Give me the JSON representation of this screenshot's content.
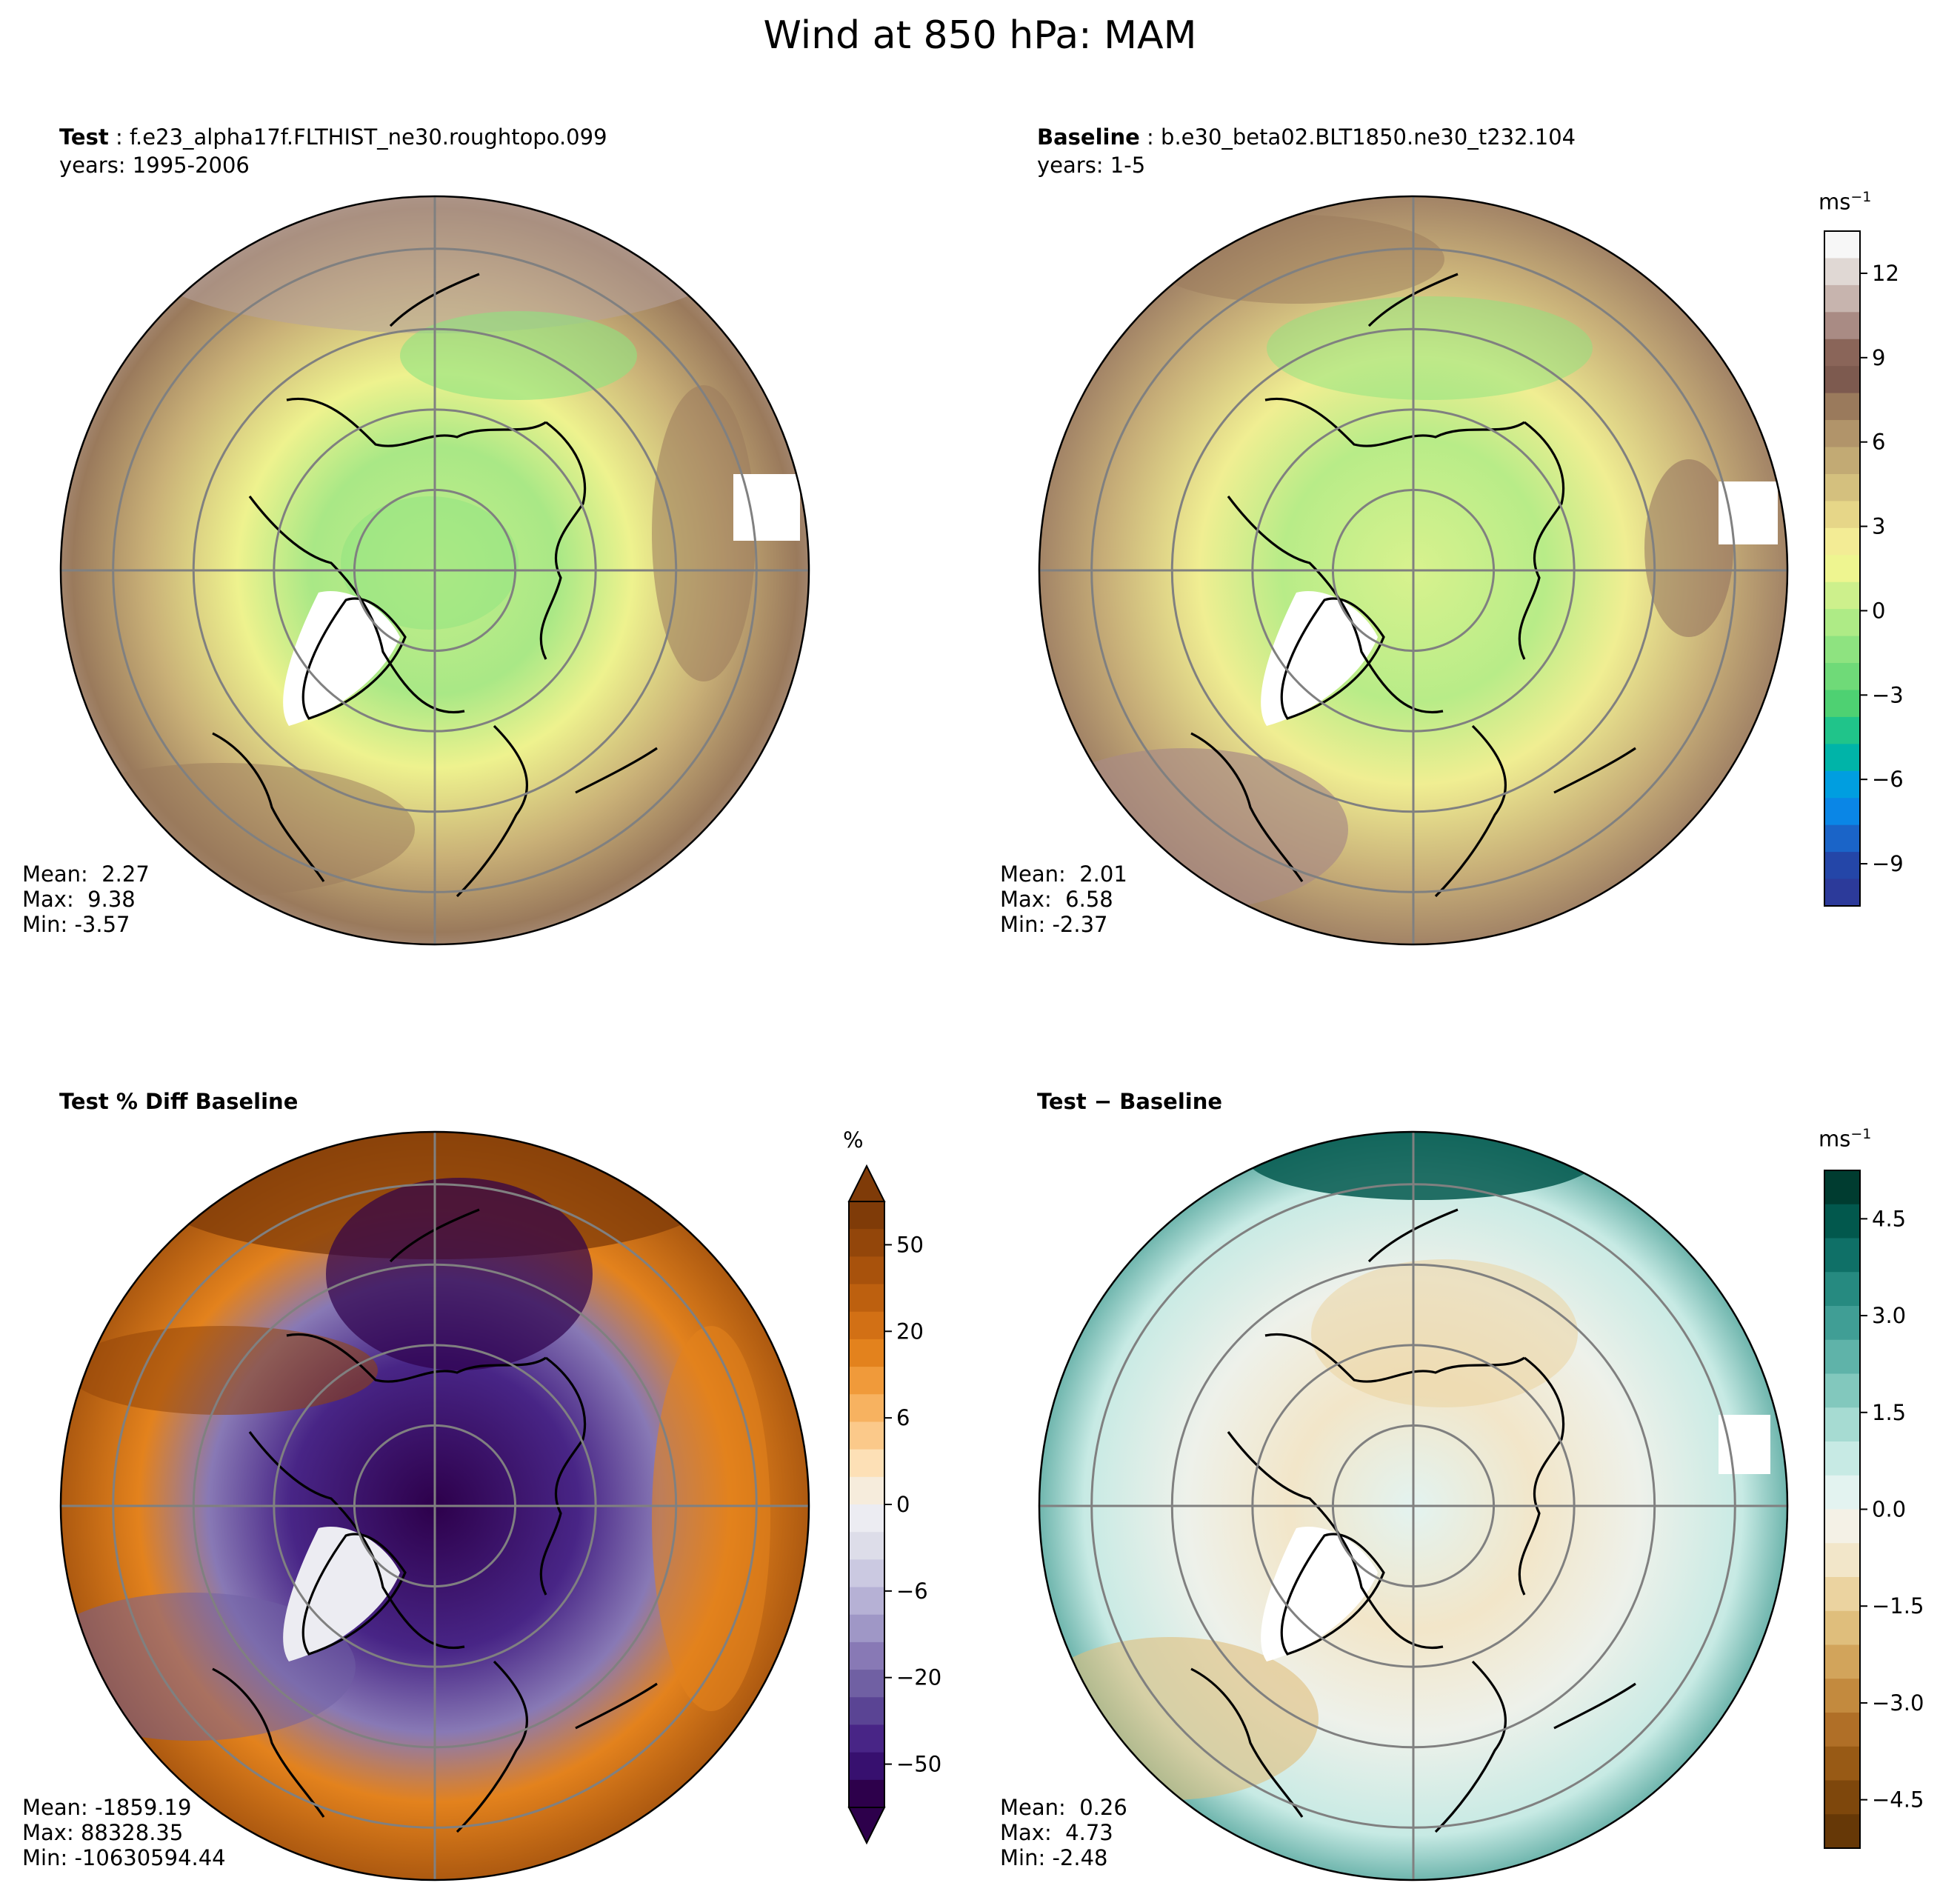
{
  "figure": {
    "title": "Wind at 850 hPa: MAM"
  },
  "panels": {
    "test": {
      "label_bold": "Test",
      "case": "f.e23_alpha17f.FLTHIST_ne30.roughtopo.099",
      "years": "years: 1995-2006",
      "stats": {
        "mean": "Mean:  2.27",
        "max": "Max:  9.38",
        "min": "Min: -3.57"
      }
    },
    "baseline": {
      "label_bold": "Baseline",
      "case": "b.e30_beta02.BLT1850.ne30_t232.104",
      "years": "years: 1-5",
      "stats": {
        "mean": "Mean:  2.01",
        "max": "Max:  6.58",
        "min": "Min: -2.37"
      }
    },
    "pct_diff": {
      "label_bold": "Test % Diff Baseline",
      "stats": {
        "mean": "Mean: -1859.19",
        "max": "Max: 88328.35",
        "min": "Min: -10630594.44"
      }
    },
    "diff": {
      "label_bold": "Test − Baseline",
      "stats": {
        "mean": "Mean:  0.26",
        "max": "Max:  4.73",
        "min": "Min: -2.48"
      }
    }
  },
  "colorbars": {
    "main": {
      "unit": "ms",
      "unit_exp": "−1",
      "ticks": [
        "12",
        "9",
        "6",
        "3",
        "0",
        "−3",
        "−6",
        "−9"
      ],
      "colors": [
        "#f7f7f7",
        "#e0d8d4",
        "#c7b4ae",
        "#a98b84",
        "#8a6559",
        "#7d5a4f",
        "#9a7a5c",
        "#b1946a",
        "#c2aa74",
        "#d4c07e",
        "#e6d688",
        "#f3ec95",
        "#eef590",
        "#cdf08c",
        "#aeeb86",
        "#8ee380",
        "#6fda78",
        "#4ed172",
        "#20c48a",
        "#00b4a8",
        "#009ee0",
        "#0a86e6",
        "#1a64c8",
        "#2446a8",
        "#2c3a9a"
      ]
    },
    "pct": {
      "unit": "%",
      "ticks": [
        "50",
        "20",
        "6",
        "0",
        "−6",
        "−20",
        "−50"
      ],
      "colors": [
        "#7f3b08",
        "#93460a",
        "#a8520c",
        "#bd600f",
        "#d27015",
        "#e3821d",
        "#f09a3a",
        "#f7b260",
        "#fbc98a",
        "#fde0b6",
        "#f6ecdc",
        "#ececf2",
        "#dddde9",
        "#cbc9e1",
        "#b6b1d5",
        "#9f97c6",
        "#8879b5",
        "#7060a3",
        "#5a4494",
        "#482586",
        "#37106f",
        "#2d004b"
      ]
    },
    "diff": {
      "unit": "ms",
      "unit_exp": "−1",
      "ticks": [
        "4.5",
        "3.0",
        "1.5",
        "0.0",
        "−1.5",
        "−3.0",
        "−4.5"
      ],
      "colors": [
        "#003c30",
        "#02584d",
        "#0f7067",
        "#268a80",
        "#409e95",
        "#5fb3a9",
        "#82c8bd",
        "#a6dbd2",
        "#c7eae4",
        "#e3f3f0",
        "#f4f1e6",
        "#f2e6c9",
        "#ebd3a0",
        "#dfbe7c",
        "#d2a45b",
        "#c38a3e",
        "#b06f27",
        "#985a15",
        "#7e470c",
        "#663807"
      ]
    }
  },
  "maps": {
    "grid": "on",
    "projection": "north polar stereographic",
    "coastlines": "on"
  }
}
